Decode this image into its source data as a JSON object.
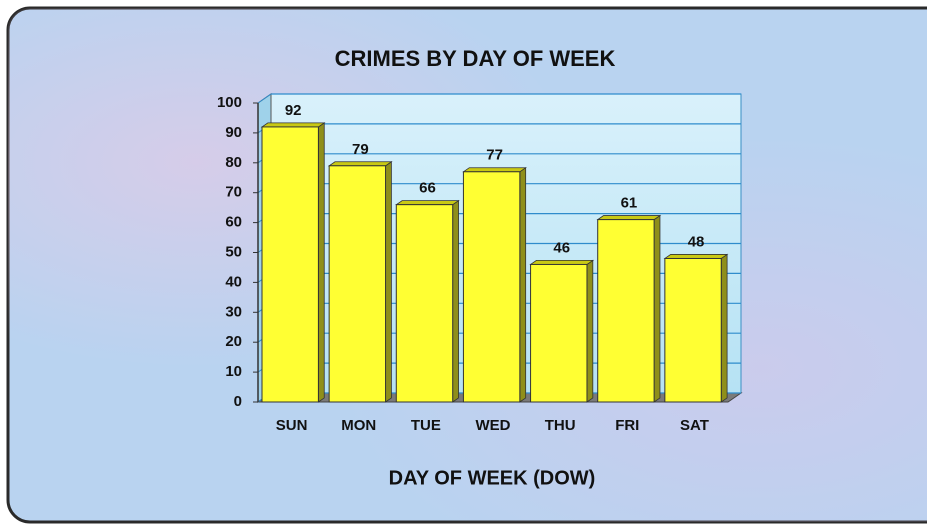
{
  "chart_data": {
    "type": "bar",
    "title": "CRIMES BY DAY OF WEEK",
    "x_label": "DAY OF WEEK (DOW)",
    "categories": [
      "SUN",
      "MON",
      "TUE",
      "WED",
      "THU",
      "FRI",
      "SAT"
    ],
    "values": [
      92,
      79,
      66,
      77,
      46,
      61,
      48
    ],
    "color": "#ffff33",
    "ylim": [
      0,
      100
    ],
    "yticks": [
      0,
      10,
      20,
      30,
      40,
      50,
      60,
      70,
      80,
      90,
      100
    ],
    "grid": true
  }
}
